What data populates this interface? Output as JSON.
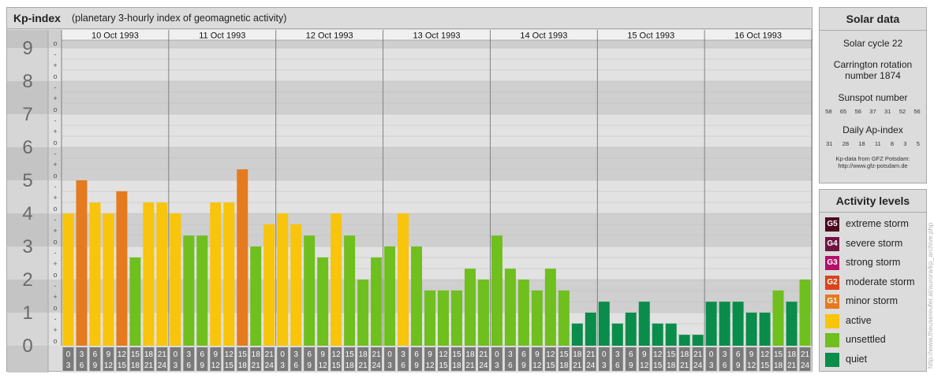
{
  "header": {
    "title": "Kp-index",
    "subtitle": "(planetary 3-hourly index of geomagnetic activity)"
  },
  "chart_data": {
    "type": "bar",
    "y_ticks": [
      "0",
      "1",
      "2",
      "3",
      "4",
      "5",
      "6",
      "7",
      "8",
      "9"
    ],
    "sub_ticks": [
      "o",
      "+",
      "-"
    ],
    "ylim": [
      0,
      9.33
    ],
    "days": [
      "10 Oct 1993",
      "11 Oct 1993",
      "12 Oct 1993",
      "13 Oct 1993",
      "14 Oct 1993",
      "15 Oct 1993",
      "16 Oct 1993"
    ],
    "hour_start": [
      "0",
      "3",
      "6",
      "9",
      "12",
      "15",
      "18",
      "21"
    ],
    "hour_end": [
      "3",
      "6",
      "9",
      "12",
      "15",
      "18",
      "21",
      "24"
    ],
    "values": [
      [
        4.0,
        5.0,
        4.33,
        4.0,
        4.67,
        2.67,
        4.33,
        4.33
      ],
      [
        4.0,
        3.33,
        3.33,
        4.33,
        4.33,
        5.33,
        3.0,
        3.67
      ],
      [
        4.0,
        3.67,
        3.33,
        2.67,
        4.0,
        3.33,
        2.0,
        2.67
      ],
      [
        3.0,
        4.0,
        3.0,
        1.67,
        1.67,
        1.67,
        2.33,
        2.0
      ],
      [
        3.33,
        2.33,
        2.0,
        1.67,
        2.33,
        1.67,
        0.67,
        1.0
      ],
      [
        1.33,
        0.67,
        1.0,
        1.33,
        0.67,
        0.67,
        0.33,
        0.33
      ],
      [
        1.33,
        1.33,
        1.33,
        1.0,
        1.0,
        1.67,
        1.33,
        2.0
      ]
    ],
    "colors": {
      "extreme": "#4b0a1e",
      "severe": "#6e1442",
      "strong": "#b4106a",
      "moderate": "#d94418",
      "minor": "#e57a1e",
      "active": "#f8c40c",
      "unsettled": "#6fbf1e",
      "quiet": "#0a8c4a"
    }
  },
  "solar": {
    "title": "Solar data",
    "cycle": "Solar cycle 22",
    "carrington_line1": "Carrington rotation",
    "carrington_line2": "number 1874",
    "sunspot_label": "Sunspot number",
    "sunspot_values": [
      "58",
      "65",
      "56",
      "37",
      "31",
      "52",
      "56"
    ],
    "ap_label": "Daily Ap-index",
    "ap_values": [
      "31",
      "28",
      "18",
      "11",
      "8",
      "3",
      "5"
    ],
    "source_line1": "Kp-data from GFZ Potsdam:",
    "source_line2": "http://www.gfz-potsdam.de"
  },
  "activity": {
    "title": "Activity levels",
    "items": [
      {
        "code": "G5",
        "label": "extreme storm",
        "color": "#4b0a1e"
      },
      {
        "code": "G4",
        "label": "severe storm",
        "color": "#6e1442"
      },
      {
        "code": "G3",
        "label": "strong storm",
        "color": "#b4106a"
      },
      {
        "code": "G2",
        "label": "moderate storm",
        "color": "#d94418"
      },
      {
        "code": "G1",
        "label": "minor storm",
        "color": "#e57a1e"
      },
      {
        "code": "",
        "label": "active",
        "color": "#f8c40c"
      },
      {
        "code": "",
        "label": "unsettled",
        "color": "#6fbf1e"
      },
      {
        "code": "",
        "label": "quiet",
        "color": "#0a8c4a"
      }
    ]
  },
  "credit": "http://www.theusereufer.at/aurora/kp_archive.php"
}
